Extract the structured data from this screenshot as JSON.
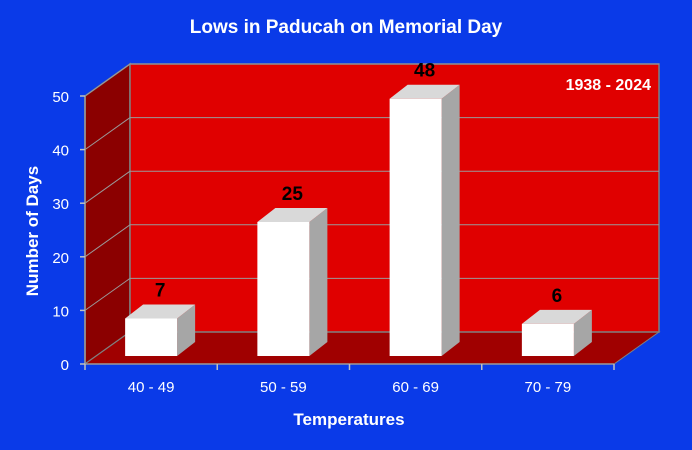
{
  "chart_data": {
    "type": "bar",
    "title": "Lows in Paducah on Memorial Day",
    "annotation": "1938 - 2024",
    "xlabel": "Temperatures",
    "ylabel": "Number of Days",
    "categories": [
      "40 - 49",
      "50 - 59",
      "60 - 69",
      "70 - 79"
    ],
    "values": [
      7,
      25,
      48,
      6
    ],
    "data_labels": [
      "7",
      "25",
      "48",
      "6"
    ],
    "ylim": [
      0,
      50
    ],
    "yticks": [
      "0",
      "10",
      "20",
      "30",
      "40",
      "50"
    ],
    "grid": true,
    "legend": "none",
    "colors": {
      "background": "#0a3ae8",
      "back_wall": "#e00000",
      "side_wall": "#8b0000",
      "floor": "#a00000",
      "bar_front": "#ffffff",
      "bar_top": "#d9d9d9",
      "bar_side": "#a6a6a6"
    }
  }
}
